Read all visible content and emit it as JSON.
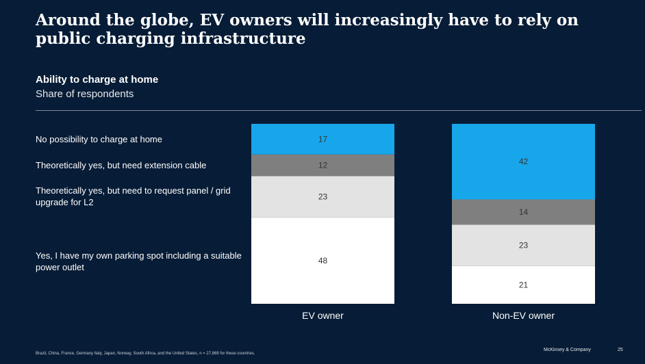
{
  "title": "Around the globe, EV owners will increasingly have to rely on public charging infrastructure",
  "subtitle": "Ability to charge at home",
  "subtitle_detail": "Share of respondents",
  "footnote": "Brazil, China, France, Germany Italy, Japan, Norway, South Africa, and the United States, n = 27,869 for these countries.",
  "brand": "McKinsey & Company",
  "page_number": "25",
  "chart_data": {
    "type": "bar",
    "stacked": true,
    "orientation": "vertical",
    "categories": [
      "EV owner",
      "Non-EV owner"
    ],
    "series": [
      {
        "name": "Yes, I have my own parking spot including a suitable power outlet",
        "values": [
          48,
          21
        ],
        "color": "#ffffff"
      },
      {
        "name": "Theoretically yes, but need to request panel / grid upgrade for L2",
        "values": [
          23,
          23
        ],
        "color": "#e3e3e3"
      },
      {
        "name": "Theoretically yes, but need extension cable",
        "values": [
          12,
          14
        ],
        "color": "#7f7f7f"
      },
      {
        "name": "No possibility to charge at home",
        "values": [
          17,
          42
        ],
        "color": "#18a6ea"
      }
    ],
    "legend_position": "left",
    "grid": false
  }
}
